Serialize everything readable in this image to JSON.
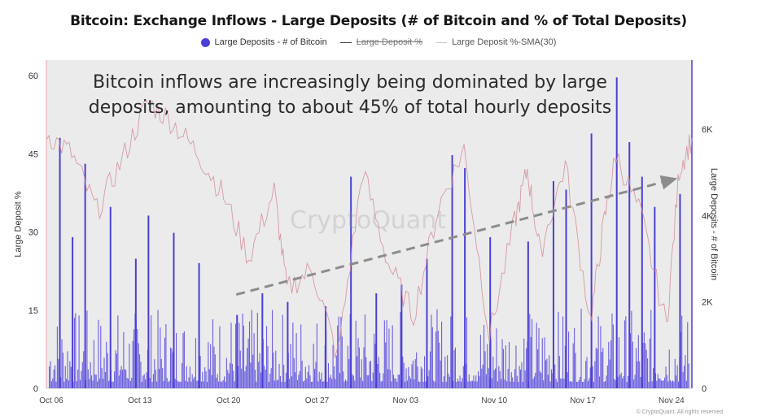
{
  "title": "Bitcoin: Exchange Inflows - Large Deposits (# of Bitcoin and % of Total Deposits)",
  "legend": [
    {
      "label": "Large Deposits - # of Bitcoin",
      "color": "#4a3fd6",
      "kind": "dot"
    },
    {
      "label": "Large Deposit %",
      "color": "#444444",
      "kind": "line-struck"
    },
    {
      "label": "Large Deposit %-SMA(30)",
      "color": "#c9c9c9",
      "kind": "line"
    }
  ],
  "annotation_line1": "Bitcoin inflows are increasingly being dominated by large",
  "annotation_line2": "deposits, amounting to about 45% of total hourly deposits",
  "watermark": "CryptoQuant",
  "copyright": "© CryptoQuant. All rights reserved",
  "chart_data": {
    "type": "bar",
    "x_tick_labels": [
      "Oct 06",
      "Oct 13",
      "Oct 20",
      "Oct 27",
      "Nov 03",
      "Nov 10",
      "Nov 17",
      "Nov 24"
    ],
    "ylabel_left": "Large Deposit %",
    "ylabel_right": "Large Deposits - # of Bitcoin",
    "yticks_left": [
      "0",
      "15",
      "30",
      "45",
      "60"
    ],
    "yticks_right": [
      "0",
      "2K",
      "4K",
      "6K"
    ],
    "ylim_left": [
      0,
      63
    ],
    "ylim_right": [
      0,
      7600
    ],
    "shaded_region": {
      "from": "Oct 06",
      "to": "Nov 26"
    },
    "series": [
      {
        "name": "Large Deposits - # of Bitcoin",
        "axis": "right",
        "color": "#4a3fd6",
        "peaks": [
          {
            "x": "Oct 07",
            "y": 5800
          },
          {
            "x": "Oct 08",
            "y": 3500
          },
          {
            "x": "Oct 09",
            "y": 5200
          },
          {
            "x": "Oct 11",
            "y": 4200
          },
          {
            "x": "Oct 13",
            "y": 3000
          },
          {
            "x": "Oct 14",
            "y": 4000
          },
          {
            "x": "Oct 16",
            "y": 3600
          },
          {
            "x": "Oct 18",
            "y": 2900
          },
          {
            "x": "Oct 21",
            "y": 1700
          },
          {
            "x": "Oct 23",
            "y": 2200
          },
          {
            "x": "Oct 25",
            "y": 2000
          },
          {
            "x": "Oct 28",
            "y": 1900
          },
          {
            "x": "Oct 30",
            "y": 4900
          },
          {
            "x": "Nov 01",
            "y": 2200
          },
          {
            "x": "Nov 03",
            "y": 2400
          },
          {
            "x": "Nov 05",
            "y": 3000
          },
          {
            "x": "Nov 07",
            "y": 5400
          },
          {
            "x": "Nov 08",
            "y": 5100
          },
          {
            "x": "Nov 10",
            "y": 3500
          },
          {
            "x": "Nov 13",
            "y": 3400
          },
          {
            "x": "Nov 15",
            "y": 4800
          },
          {
            "x": "Nov 16",
            "y": 4600
          },
          {
            "x": "Nov 18",
            "y": 5900
          },
          {
            "x": "Nov 20",
            "y": 7200
          },
          {
            "x": "Nov 21",
            "y": 5700
          },
          {
            "x": "Nov 22",
            "y": 4900
          },
          {
            "x": "Nov 23",
            "y": 4200
          },
          {
            "x": "Nov 25",
            "y": 4500
          }
        ]
      },
      {
        "name": "Large Deposit %-SMA(30)",
        "axis": "left",
        "color": "#d4919c",
        "points": [
          {
            "x": "Oct 06",
            "y": 49
          },
          {
            "x": "Oct 08",
            "y": 45
          },
          {
            "x": "Oct 10",
            "y": 34
          },
          {
            "x": "Oct 12",
            "y": 44
          },
          {
            "x": "Oct 14",
            "y": 55
          },
          {
            "x": "Oct 16",
            "y": 51
          },
          {
            "x": "Oct 18",
            "y": 45
          },
          {
            "x": "Oct 20",
            "y": 37
          },
          {
            "x": "Oct 22",
            "y": 25
          },
          {
            "x": "Oct 24",
            "y": 38
          },
          {
            "x": "Oct 25",
            "y": 19
          },
          {
            "x": "Oct 27",
            "y": 23
          },
          {
            "x": "Oct 29",
            "y": 6
          },
          {
            "x": "Oct 31",
            "y": 42
          },
          {
            "x": "Nov 02",
            "y": 24
          },
          {
            "x": "Nov 04",
            "y": 14
          },
          {
            "x": "Nov 06",
            "y": 35
          },
          {
            "x": "Nov 08",
            "y": 46
          },
          {
            "x": "Nov 10",
            "y": 10
          },
          {
            "x": "Nov 12",
            "y": 32
          },
          {
            "x": "Nov 13",
            "y": 42
          },
          {
            "x": "Nov 14",
            "y": 26
          },
          {
            "x": "Nov 16",
            "y": 43
          },
          {
            "x": "Nov 18",
            "y": 13
          },
          {
            "x": "Nov 19",
            "y": 31
          },
          {
            "x": "Nov 20",
            "y": 45
          },
          {
            "x": "Nov 22",
            "y": 33
          },
          {
            "x": "Nov 24",
            "y": 12
          },
          {
            "x": "Nov 25",
            "y": 42
          },
          {
            "x": "Nov 26",
            "y": 48
          }
        ]
      }
    ],
    "trend_arrow": {
      "from": {
        "x": "Oct 21",
        "y_left": 18
      },
      "to": {
        "x": "Nov 25",
        "y_left": 40
      },
      "style": "dashed",
      "color": "#8c8c8c"
    }
  }
}
